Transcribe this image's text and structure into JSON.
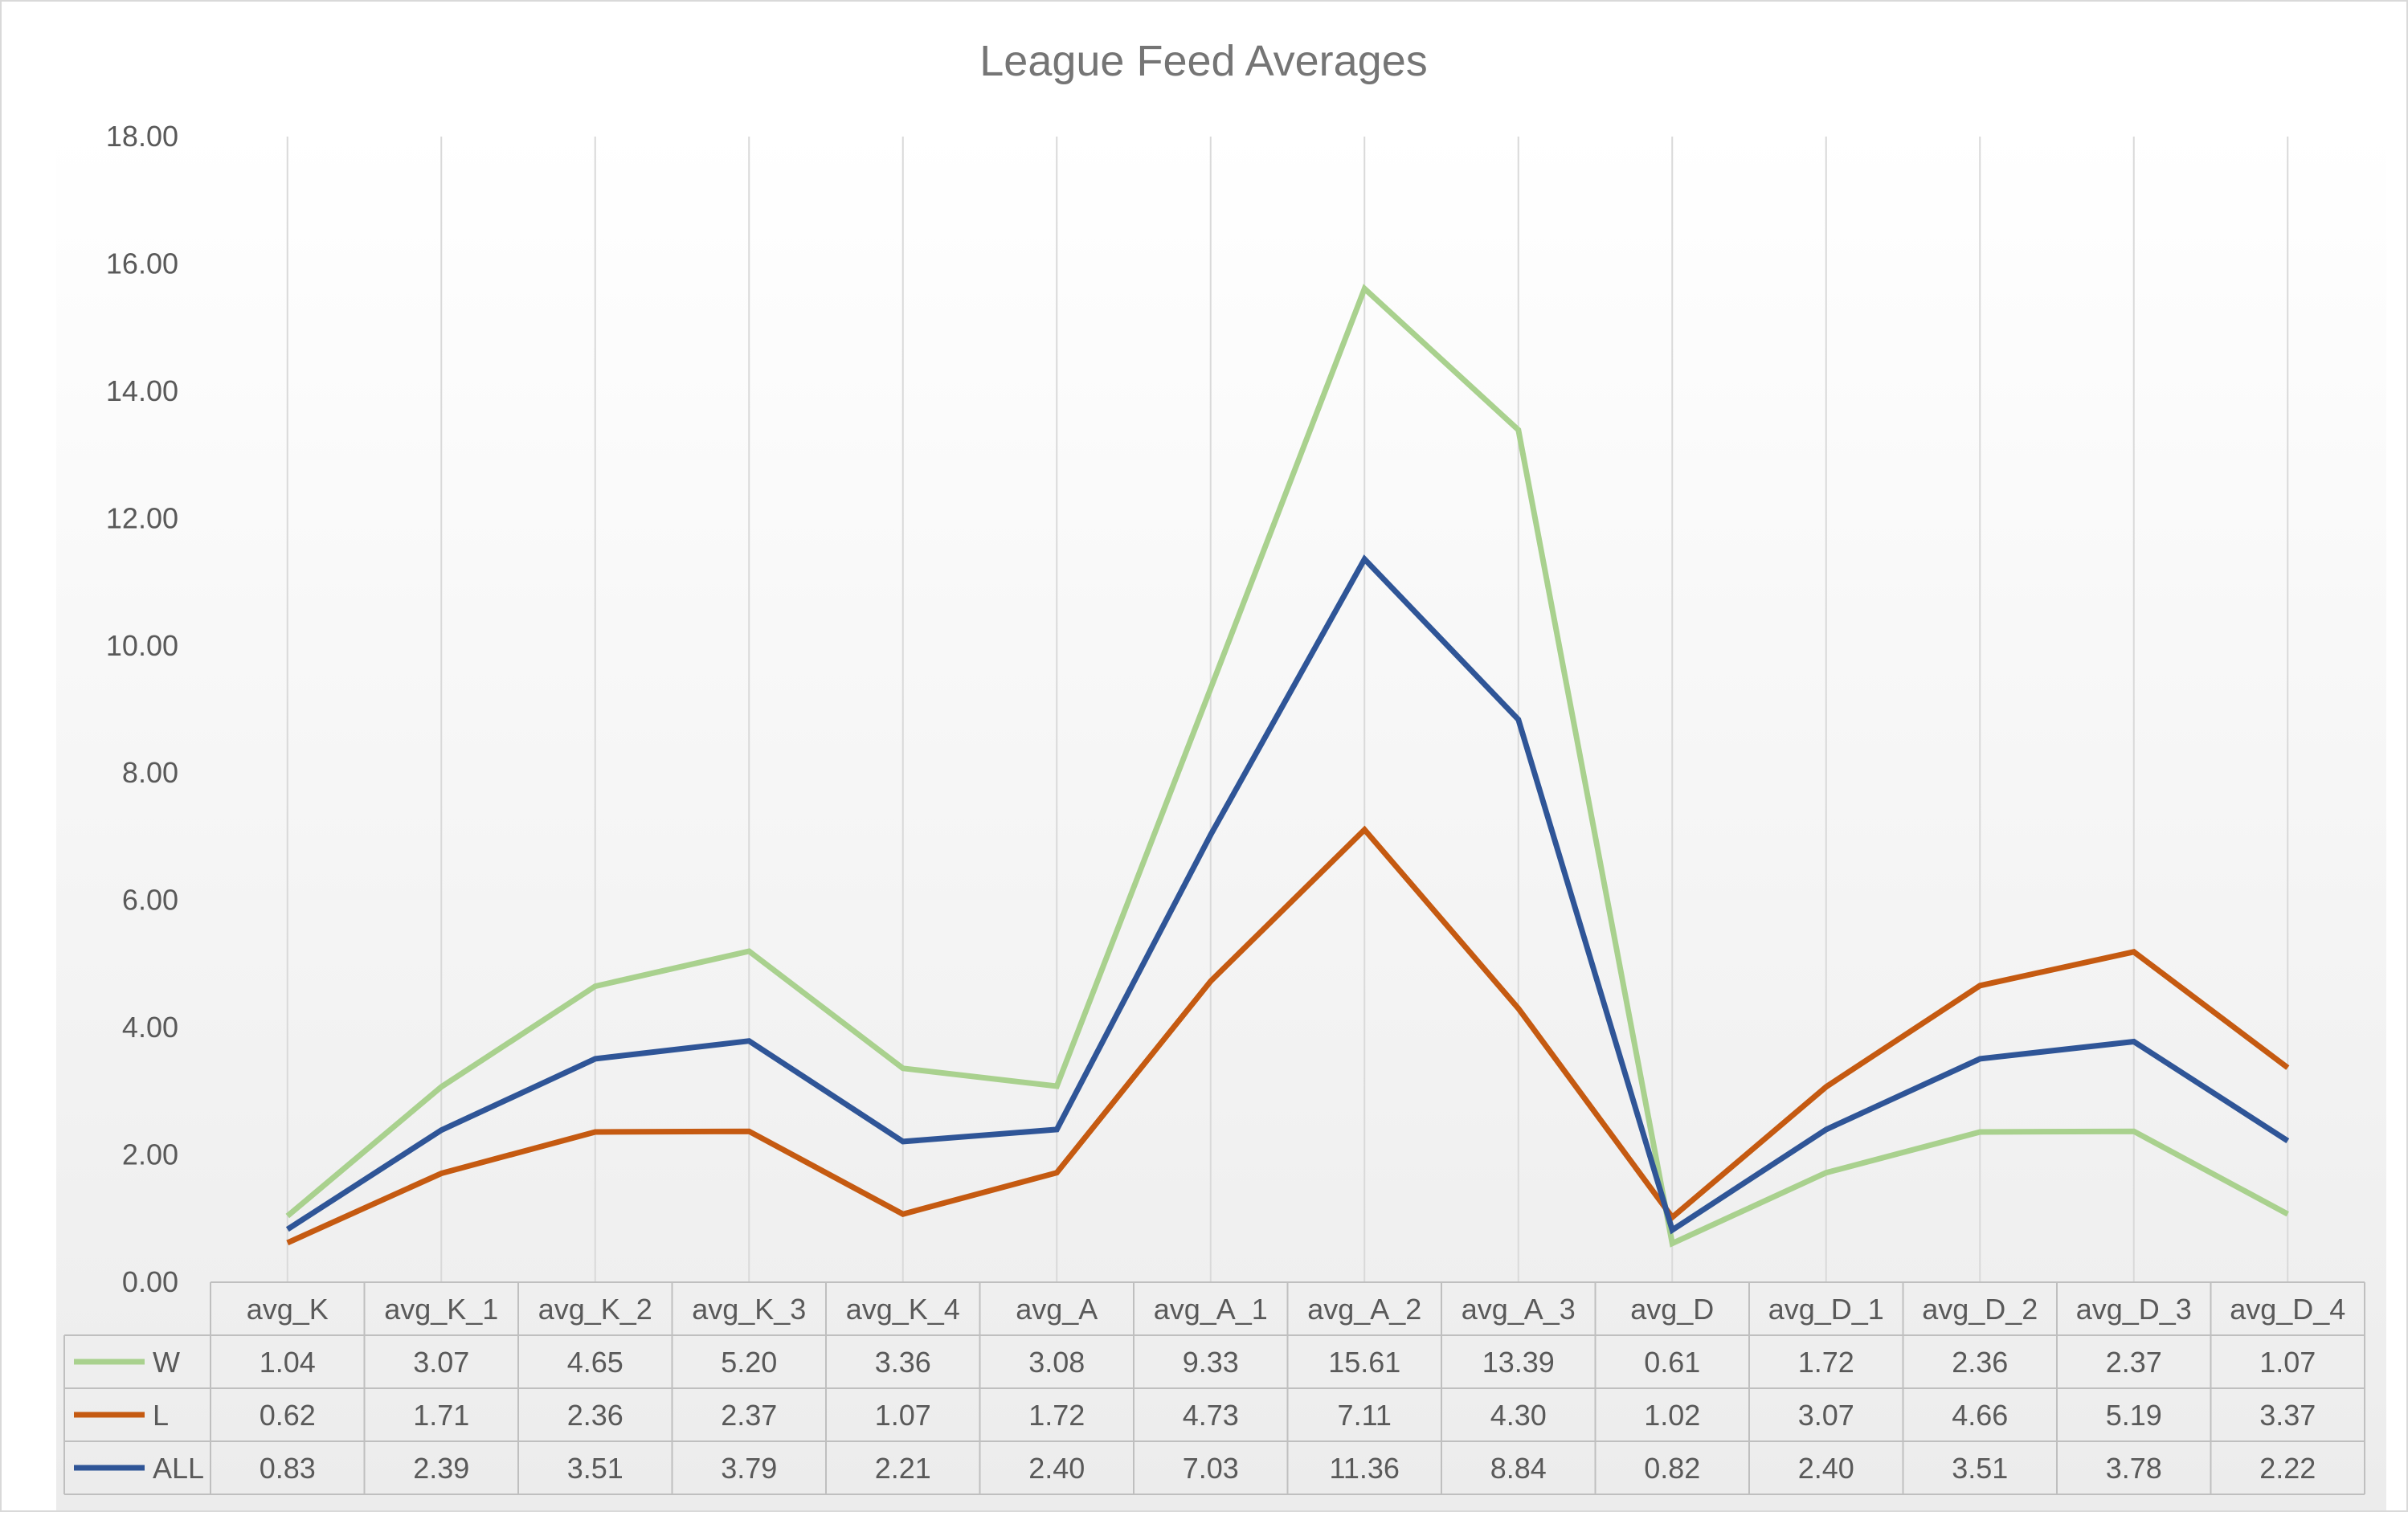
{
  "chart_data": {
    "type": "line",
    "title": "League Feed Averages",
    "xlabel": "",
    "ylabel": "",
    "ylim": [
      0,
      18
    ],
    "yticks": [
      "0.00",
      "2.00",
      "4.00",
      "6.00",
      "8.00",
      "10.00",
      "12.00",
      "14.00",
      "16.00",
      "18.00"
    ],
    "grid": "vertical",
    "legend": "data-table",
    "categories": [
      "avg_K",
      "avg_K_1",
      "avg_K_2",
      "avg_K_3",
      "avg_K_4",
      "avg_A",
      "avg_A_1",
      "avg_A_2",
      "avg_A_3",
      "avg_D",
      "avg_D_1",
      "avg_D_2",
      "avg_D_3",
      "avg_D_4"
    ],
    "series": [
      {
        "name": "W",
        "color": "#a9d18e",
        "values": [
          1.04,
          3.07,
          4.65,
          5.2,
          3.36,
          3.08,
          9.33,
          15.61,
          13.39,
          0.61,
          1.72,
          2.36,
          2.37,
          1.07
        ],
        "labels": [
          "1.04",
          "3.07",
          "4.65",
          "5.20",
          "3.36",
          "3.08",
          "9.33",
          "15.61",
          "13.39",
          "0.61",
          "1.72",
          "2.36",
          "2.37",
          "1.07"
        ]
      },
      {
        "name": "L",
        "color": "#c55a11",
        "values": [
          0.62,
          1.71,
          2.36,
          2.37,
          1.07,
          1.72,
          4.73,
          7.11,
          4.3,
          1.02,
          3.07,
          4.66,
          5.19,
          3.37
        ],
        "labels": [
          "0.62",
          "1.71",
          "2.36",
          "2.37",
          "1.07",
          "1.72",
          "4.73",
          "7.11",
          "4.30",
          "1.02",
          "3.07",
          "4.66",
          "5.19",
          "3.37"
        ]
      },
      {
        "name": "ALL",
        "color": "#2f5597",
        "values": [
          0.83,
          2.39,
          3.51,
          3.79,
          2.21,
          2.4,
          7.03,
          11.36,
          8.84,
          0.82,
          2.4,
          3.51,
          3.78,
          2.22
        ],
        "labels": [
          "0.83",
          "2.39",
          "3.51",
          "3.79",
          "2.21",
          "2.40",
          "7.03",
          "11.36",
          "8.84",
          "0.82",
          "2.40",
          "3.51",
          "3.78",
          "2.22"
        ]
      }
    ]
  }
}
